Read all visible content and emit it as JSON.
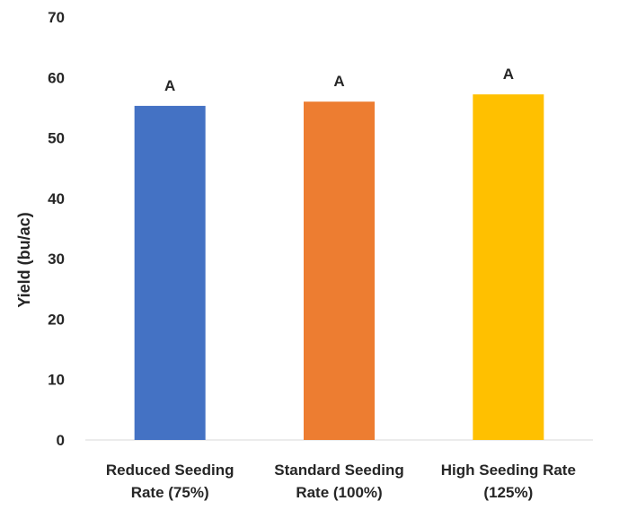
{
  "chart_data": {
    "type": "bar",
    "title": "",
    "xlabel": "",
    "ylabel": "Yield (bu/ac)",
    "ylim": [
      0,
      70
    ],
    "yticks": [
      0,
      10,
      20,
      30,
      40,
      50,
      60,
      70
    ],
    "grid": false,
    "legend": "none",
    "categories": [
      [
        "Reduced Seeding",
        "Rate (75%)"
      ],
      [
        "Standard Seeding",
        "Rate (100%)"
      ],
      [
        "High Seeding Rate",
        "(125%)"
      ]
    ],
    "values": [
      55.3,
      56.0,
      57.2
    ],
    "data_labels": [
      "A",
      "A",
      "A"
    ],
    "colors": [
      "#4472C4",
      "#ED7D31",
      "#FFC000"
    ],
    "axis_color": "#D9D9D9"
  }
}
